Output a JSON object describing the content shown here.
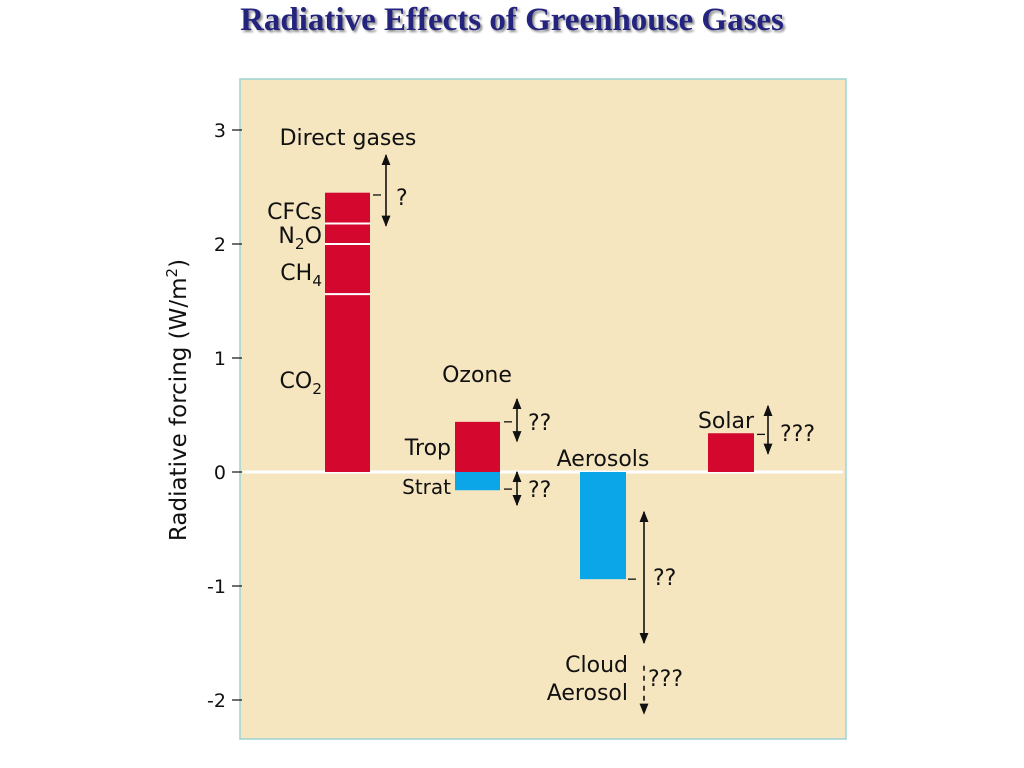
{
  "title": "Radiative Effects of Greenhouse Gases",
  "colors": {
    "plot_bg": "#f5e6c0",
    "plot_border": "#9fd4d4",
    "positive": "#d4072e",
    "negative": "#0ba6e8",
    "title": "#24247f"
  },
  "chart_data": {
    "type": "bar",
    "title": "",
    "ylabel": "Radiative forcing (W/m²)",
    "ylim": [
      -2.35,
      3.5
    ],
    "yticks": [
      3,
      2,
      1,
      0,
      -1,
      -2
    ],
    "ytick_labels": [
      "3",
      "2",
      "1",
      "0",
      "-1",
      "-2"
    ],
    "grid": false,
    "groups": [
      {
        "name": "Direct gases",
        "uncertainty": "?",
        "stack": [
          {
            "name": "CO2",
            "label": "CO",
            "sub": "2",
            "bottom": 0,
            "top": 1.56,
            "color": "positive"
          },
          {
            "name": "CH4",
            "label": "CH",
            "sub": "4",
            "bottom": 1.56,
            "top": 2.0,
            "color": "positive"
          },
          {
            "name": "N2O",
            "label": "N",
            "sub": "2",
            "label_tail": "O",
            "bottom": 2.0,
            "top": 2.18,
            "color": "positive"
          },
          {
            "name": "CFCs",
            "label": "CFCs",
            "bottom": 2.18,
            "top": 2.45,
            "color": "positive"
          }
        ],
        "error_range": [
          2.16,
          2.78
        ]
      },
      {
        "name": "Ozone",
        "components": [
          {
            "name": "Trop",
            "value": 0.44,
            "uncertainty": "??",
            "error_range": [
              0.27,
              0.64
            ],
            "color": "positive"
          },
          {
            "name": "Strat",
            "value": -0.16,
            "uncertainty": "??",
            "error_range": [
              -0.29,
              0.0
            ],
            "color": "negative"
          }
        ]
      },
      {
        "name": "Aerosols",
        "value": -0.94,
        "uncertainty": "??",
        "error_range": [
          -1.5,
          -0.35
        ],
        "color": "negative",
        "sub_labels": [
          "Cloud",
          "Aerosol"
        ],
        "sub_uncertainty": "???",
        "sub_error_range": [
          -2.12,
          -1.7
        ]
      },
      {
        "name": "Solar",
        "value": 0.34,
        "uncertainty": "???",
        "error_range": [
          0.16,
          0.58
        ],
        "color": "positive"
      }
    ]
  }
}
